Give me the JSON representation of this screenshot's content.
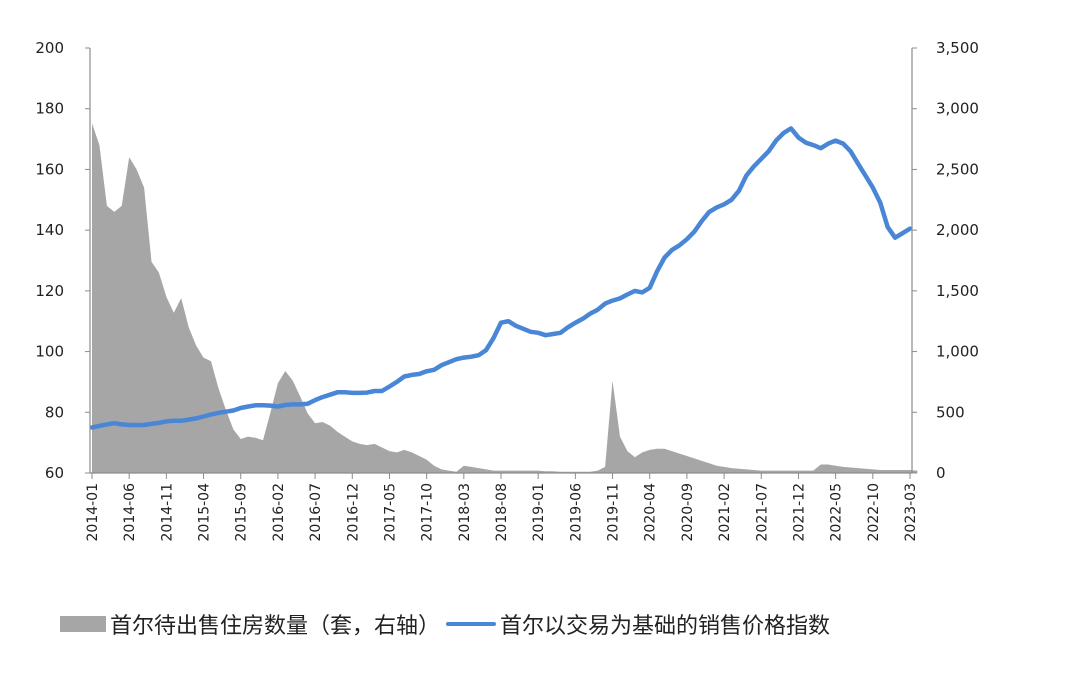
{
  "chart_data": {
    "type": "area+line",
    "title": "",
    "xlabel": "",
    "ylabel_left": "",
    "ylabel_right": "",
    "ylim_left": [
      60,
      200
    ],
    "ylim_right": [
      0,
      3500
    ],
    "left_ticks": [
      "60",
      "80",
      "100",
      "120",
      "140",
      "160",
      "180",
      "200"
    ],
    "right_ticks": [
      "0",
      "500",
      "1,000",
      "1,500",
      "2,000",
      "2,500",
      "3,000",
      "3,500"
    ],
    "x_tick_labels": [
      "2014-01",
      "2014-06",
      "2014-11",
      "2015-04",
      "2015-09",
      "2016-02",
      "2016-07",
      "2016-12",
      "2017-05",
      "2017-10",
      "2018-03",
      "2018-08",
      "2019-01",
      "2019-06",
      "2019-11",
      "2020-04",
      "2020-09",
      "2021-02",
      "2021-07",
      "2021-12",
      "2022-05",
      "2022-10",
      "2023-03"
    ],
    "x_start": "2014-01",
    "x_end": "2023-03",
    "grid": false,
    "legend_position": "bottom",
    "series": [
      {
        "name": "首尔待出售住房数量（套，右轴）",
        "type": "area",
        "axis": "right",
        "color": "#a6a6a6",
        "values": [
          2880,
          2700,
          2200,
          2150,
          2200,
          2600,
          2500,
          2350,
          1740,
          1650,
          1450,
          1320,
          1440,
          1200,
          1050,
          950,
          920,
          700,
          520,
          360,
          280,
          300,
          290,
          270,
          500,
          740,
          840,
          760,
          630,
          490,
          410,
          420,
          390,
          340,
          300,
          260,
          240,
          230,
          240,
          210,
          180,
          170,
          190,
          170,
          140,
          110,
          60,
          30,
          20,
          10,
          60,
          50,
          40,
          30,
          20,
          20,
          20,
          20,
          20,
          20,
          20,
          15,
          15,
          10,
          10,
          10,
          10,
          10,
          20,
          50,
          760,
          300,
          180,
          130,
          170,
          190,
          200,
          200,
          180,
          160,
          140,
          120,
          100,
          80,
          60,
          50,
          40,
          35,
          30,
          25,
          20,
          20,
          20,
          20,
          20,
          20,
          20,
          20,
          70,
          70,
          60,
          50,
          45,
          40,
          35,
          30,
          25,
          25,
          25,
          25,
          25,
          20
        ]
      },
      {
        "name": "首尔以交易为基础的销售价格指数",
        "type": "line",
        "axis": "left",
        "color": "#4a86d6",
        "values": [
          75.0,
          75.5,
          76.0,
          76.4,
          76.0,
          75.8,
          75.8,
          75.8,
          76.2,
          76.5,
          77.0,
          77.2,
          77.2,
          77.6,
          78.0,
          78.6,
          79.3,
          79.8,
          80.2,
          80.6,
          81.4,
          81.9,
          82.3,
          82.3,
          82.2,
          81.9,
          82.4,
          82.6,
          82.6,
          82.8,
          84.0,
          85.0,
          85.8,
          86.6,
          86.6,
          86.4,
          86.4,
          86.5,
          87.0,
          87.0,
          88.5,
          90.0,
          91.8,
          92.3,
          92.6,
          93.5,
          94.0,
          95.5,
          96.5,
          97.5,
          98.0,
          98.3,
          98.8,
          100.5,
          104.5,
          109.5,
          110.0,
          108.5,
          107.5,
          106.5,
          106.2,
          105.4,
          105.8,
          106.2,
          108.0,
          109.5,
          110.8,
          112.5,
          113.8,
          115.8,
          116.8,
          117.5,
          118.8,
          120.0,
          119.5,
          121.0,
          126.5,
          131.0,
          133.5,
          135.0,
          137.0,
          139.5,
          143.0,
          146.0,
          147.5,
          148.5,
          150.0,
          153.0,
          158.0,
          161.0,
          163.5,
          166.0,
          169.5,
          172.0,
          173.5,
          170.5,
          168.8,
          168.0,
          167.0,
          168.5,
          169.5,
          168.5,
          166.0,
          162.0,
          158.0,
          154.0,
          149.0,
          141.0,
          137.5,
          139.0,
          140.5
        ]
      }
    ]
  },
  "legend": {
    "area_label": "首尔待出售住房数量（套，右轴）",
    "line_label": "首尔以交易为基础的销售价格指数"
  }
}
